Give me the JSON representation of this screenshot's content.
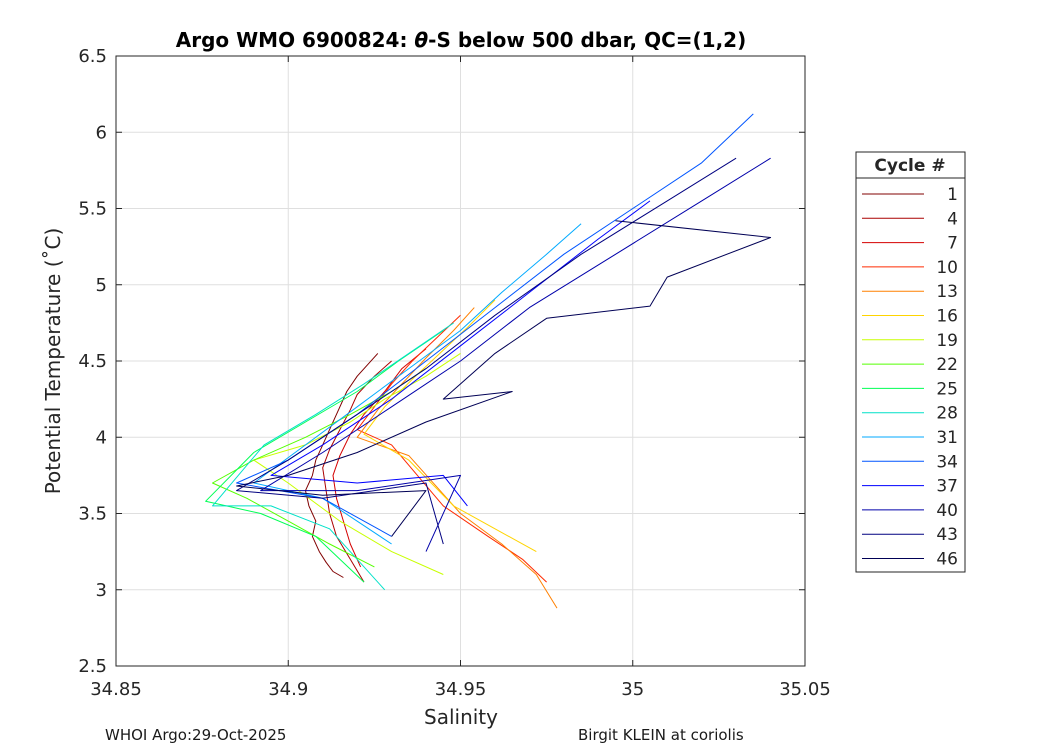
{
  "chart_data": {
    "type": "line",
    "title_prefix": "Argo WMO 6900824: ",
    "title_symbol": "θ",
    "title_suffix": "-S below 500 dbar,  QC=(1,2)",
    "xlabel": "Salinity",
    "ylabel": "Potential Temperature (˚C)",
    "xlim": [
      34.85,
      35.05
    ],
    "ylim": [
      2.5,
      6.5
    ],
    "xticks": [
      34.85,
      34.9,
      34.95,
      35,
      35.05
    ],
    "xtick_labels": [
      "34.85",
      "34.9",
      "34.95",
      "35",
      "35.05"
    ],
    "yticks": [
      2.5,
      3,
      3.5,
      4,
      4.5,
      5,
      5.5,
      6,
      6.5
    ],
    "ytick_labels": [
      "2.5",
      "3",
      "3.5",
      "4",
      "4.5",
      "5",
      "5.5",
      "6",
      "6.5"
    ],
    "grid": true,
    "legend_title": "Cycle #",
    "legend_placement": "outside-right",
    "series": [
      {
        "name": "1",
        "color": "#800000",
        "x": [
          34.926,
          34.92,
          34.917,
          34.915,
          34.912,
          34.91,
          34.908,
          34.907,
          34.905,
          34.906,
          34.908,
          34.907,
          34.909,
          34.911,
          34.913,
          34.916
        ],
        "y": [
          4.55,
          4.4,
          4.3,
          4.2,
          4.05,
          3.95,
          3.85,
          3.75,
          3.65,
          3.55,
          3.45,
          3.35,
          3.25,
          3.18,
          3.12,
          3.08
        ]
      },
      {
        "name": "4",
        "color": "#aa0000",
        "x": [
          34.93,
          34.925,
          34.92,
          34.918,
          34.915,
          34.912,
          34.91,
          34.911,
          34.912,
          34.914,
          34.918,
          34.922
        ],
        "y": [
          4.5,
          4.4,
          4.28,
          4.18,
          4.05,
          3.92,
          3.8,
          3.65,
          3.5,
          3.35,
          3.2,
          3.05
        ]
      },
      {
        "name": "7",
        "color": "#d40000",
        "x": [
          34.94,
          34.933,
          34.928,
          34.922,
          34.918,
          34.915,
          34.913,
          34.914,
          34.916,
          34.918,
          34.921
        ],
        "y": [
          4.58,
          4.45,
          4.3,
          4.15,
          4.02,
          3.88,
          3.75,
          3.6,
          3.45,
          3.3,
          3.15
        ]
      },
      {
        "name": "10",
        "color": "#ff2a00",
        "x": [
          34.95,
          34.943,
          34.936,
          34.93,
          34.925,
          34.92,
          34.93,
          34.945,
          34.958,
          34.968,
          34.975
        ],
        "y": [
          4.8,
          4.65,
          4.5,
          4.35,
          4.2,
          4.05,
          3.95,
          3.55,
          3.35,
          3.2,
          3.05
        ]
      },
      {
        "name": "13",
        "color": "#ff8000",
        "x": [
          34.954,
          34.948,
          34.94,
          34.933,
          34.926,
          34.92,
          34.935,
          34.95,
          34.962,
          34.972,
          34.978
        ],
        "y": [
          4.85,
          4.7,
          4.52,
          4.35,
          4.18,
          4.0,
          3.88,
          3.5,
          3.3,
          3.1,
          2.88
        ]
      },
      {
        "name": "16",
        "color": "#ffd400",
        "x": [
          34.96,
          34.952,
          34.944,
          34.936,
          34.928,
          34.922,
          34.935,
          34.948,
          34.96,
          34.972
        ],
        "y": [
          4.9,
          4.72,
          4.55,
          4.38,
          4.2,
          4.02,
          3.85,
          3.55,
          3.4,
          3.25
        ]
      },
      {
        "name": "19",
        "color": "#c8ff00",
        "x": [
          34.95,
          34.94,
          34.928,
          34.918,
          34.905,
          34.89,
          34.9,
          34.915,
          34.93,
          34.945
        ],
        "y": [
          4.55,
          4.4,
          4.25,
          4.1,
          3.95,
          3.85,
          3.7,
          3.45,
          3.25,
          3.1
        ]
      },
      {
        "name": "22",
        "color": "#55ff00",
        "x": [
          34.94,
          34.93,
          34.918,
          34.905,
          34.89,
          34.878,
          34.888,
          34.9,
          34.912,
          34.925
        ],
        "y": [
          4.45,
          4.3,
          4.15,
          4.0,
          3.85,
          3.7,
          3.6,
          3.45,
          3.3,
          3.15
        ]
      },
      {
        "name": "25",
        "color": "#00ff55",
        "x": [
          34.945,
          34.932,
          34.92,
          34.905,
          34.89,
          34.876,
          34.892,
          34.908,
          34.922
        ],
        "y": [
          4.7,
          4.5,
          4.3,
          4.1,
          3.9,
          3.58,
          3.5,
          3.35,
          3.05
        ]
      },
      {
        "name": "28",
        "color": "#00e1c8",
        "x": [
          34.948,
          34.935,
          34.922,
          34.908,
          34.893,
          34.878,
          34.895,
          34.912,
          34.928
        ],
        "y": [
          4.75,
          4.55,
          4.35,
          4.15,
          3.95,
          3.55,
          3.55,
          3.4,
          3.0
        ]
      },
      {
        "name": "31",
        "color": "#00aaff",
        "x": [
          34.985,
          34.975,
          34.962,
          34.95,
          34.935,
          34.92,
          34.905,
          34.89,
          34.91,
          34.93
        ],
        "y": [
          5.4,
          5.2,
          4.95,
          4.7,
          4.45,
          4.2,
          3.95,
          3.7,
          3.6,
          3.3
        ]
      },
      {
        "name": "34",
        "color": "#0055ff",
        "x": [
          35.035,
          35.02,
          35.0,
          34.98,
          34.96,
          34.94,
          34.92,
          34.9,
          34.885,
          34.91,
          34.93
        ],
        "y": [
          6.12,
          5.8,
          5.5,
          5.2,
          4.85,
          4.5,
          4.15,
          3.85,
          3.7,
          3.6,
          3.35
        ]
      },
      {
        "name": "37",
        "color": "#0000ff",
        "x": [
          35.005,
          34.99,
          34.97,
          34.95,
          34.93,
          34.91,
          34.895,
          34.92,
          34.945,
          34.952
        ],
        "y": [
          5.55,
          5.3,
          4.95,
          4.6,
          4.25,
          3.95,
          3.75,
          3.7,
          3.75,
          3.55
        ]
      },
      {
        "name": "40",
        "color": "#0000aa",
        "x": [
          35.04,
          35.02,
          34.995,
          34.97,
          34.95,
          34.93,
          34.91,
          34.892,
          34.92,
          34.95,
          34.94
        ],
        "y": [
          5.83,
          5.55,
          5.2,
          4.85,
          4.5,
          4.2,
          3.9,
          3.65,
          3.65,
          3.75,
          3.25
        ]
      },
      {
        "name": "43",
        "color": "#000080",
        "x": [
          35.03,
          35.01,
          34.985,
          34.96,
          34.94,
          34.92,
          34.9,
          34.885,
          34.91,
          34.94,
          34.945
        ],
        "y": [
          5.83,
          5.55,
          5.2,
          4.8,
          4.45,
          4.15,
          3.85,
          3.65,
          3.6,
          3.7,
          3.3
        ]
      },
      {
        "name": "46",
        "color": "#000055",
        "x": [
          34.995,
          35.04,
          35.01,
          35.005,
          34.975,
          34.96,
          34.945,
          34.965,
          34.94,
          34.92,
          34.9,
          34.885,
          34.91,
          34.94,
          34.93
        ],
        "y": [
          5.42,
          5.31,
          5.05,
          4.86,
          4.78,
          4.55,
          4.25,
          4.3,
          4.1,
          3.9,
          3.75,
          3.68,
          3.62,
          3.65,
          3.35
        ]
      }
    ]
  },
  "footer": {
    "left": "WHOI Argo:29-Oct-2025",
    "right": "Birgit KLEIN at coriolis"
  }
}
